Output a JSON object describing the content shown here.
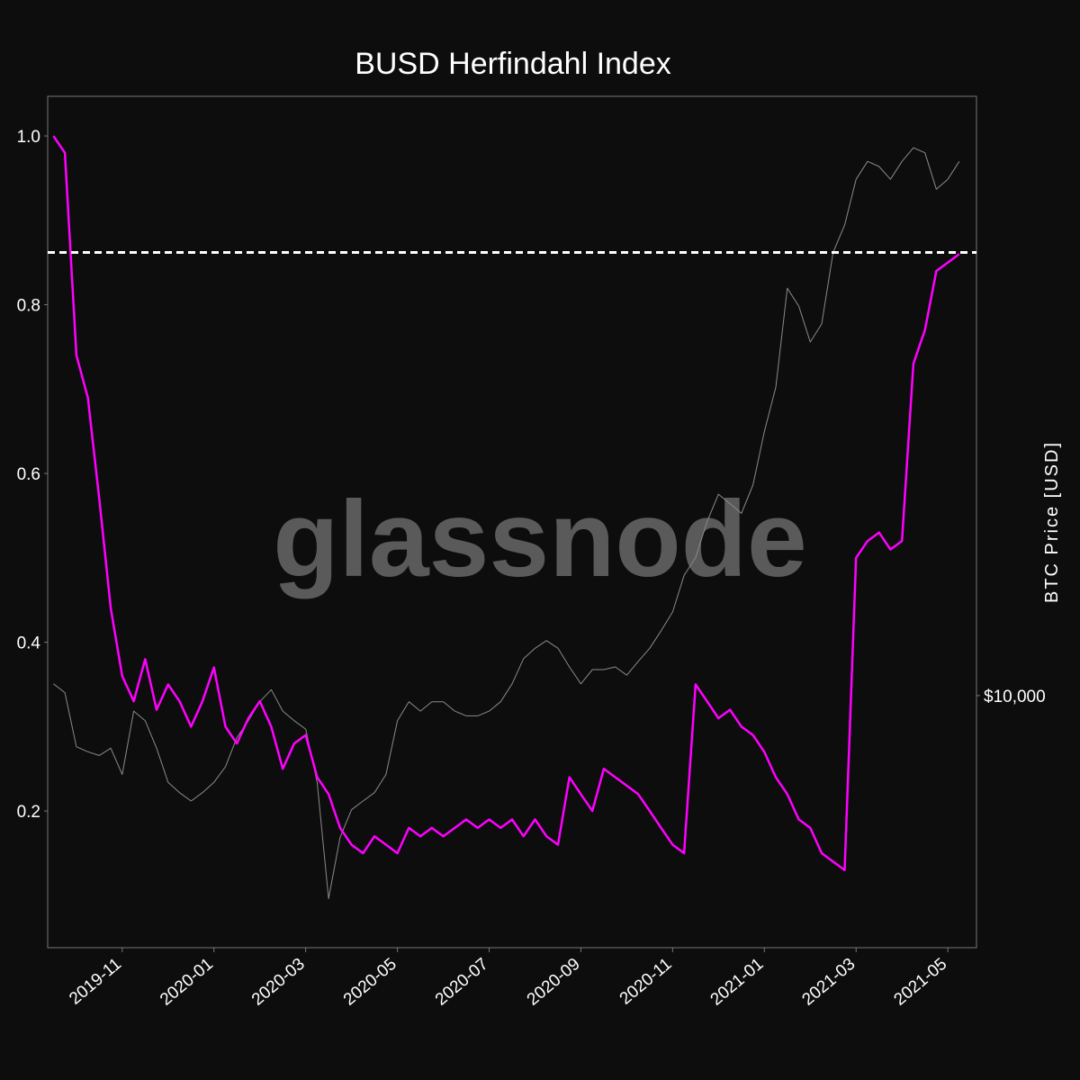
{
  "chart_data": {
    "type": "line",
    "title": "BUSD Herfindahl Index",
    "watermark": "glassnode",
    "y2label": "BTC Price [USD]",
    "categories": [
      null,
      null,
      null,
      null,
      null,
      null,
      "2019-11",
      null,
      null,
      null,
      null,
      null,
      null,
      null,
      "2020-01",
      null,
      null,
      null,
      null,
      null,
      null,
      null,
      "2020-03",
      null,
      null,
      null,
      null,
      null,
      null,
      null,
      "2020-05",
      null,
      null,
      null,
      null,
      null,
      null,
      null,
      "2020-07",
      null,
      null,
      null,
      null,
      null,
      null,
      null,
      "2020-09",
      null,
      null,
      null,
      null,
      null,
      null,
      null,
      "2020-11",
      null,
      null,
      null,
      null,
      null,
      null,
      null,
      "2021-01",
      null,
      null,
      null,
      null,
      null,
      null,
      null,
      "2021-03",
      null,
      null,
      null,
      null,
      null,
      null,
      null,
      "2021-05",
      null
    ],
    "series": [
      {
        "name": "BUSD Herfindahl Index",
        "color": "#ff00ff",
        "axis": "y",
        "values": [
          1.0,
          0.98,
          0.74,
          0.69,
          0.57,
          0.44,
          0.36,
          0.33,
          0.38,
          0.32,
          0.35,
          0.33,
          0.3,
          0.33,
          0.37,
          0.3,
          0.28,
          0.31,
          0.33,
          0.3,
          0.25,
          0.28,
          0.29,
          0.24,
          0.22,
          0.18,
          0.16,
          0.15,
          0.17,
          0.16,
          0.15,
          0.18,
          0.17,
          0.18,
          0.17,
          0.18,
          0.19,
          0.18,
          0.19,
          0.18,
          0.19,
          0.17,
          0.19,
          0.17,
          0.16,
          0.24,
          0.22,
          0.2,
          0.25,
          0.24,
          0.23,
          0.22,
          0.2,
          0.18,
          0.16,
          0.15,
          0.35,
          0.33,
          0.31,
          0.32,
          0.3,
          0.29,
          0.27,
          0.24,
          0.22,
          0.19,
          0.18,
          0.15,
          0.14,
          0.13,
          0.5,
          0.52,
          0.53,
          0.51,
          0.52,
          0.73,
          0.77,
          0.84,
          0.85,
          0.86
        ]
      },
      {
        "name": "BTC Price [USD]",
        "color": "#8a8a8a",
        "axis": "y2",
        "values": [
          10400,
          10100,
          8440,
          8300,
          8200,
          8400,
          7700,
          9500,
          9200,
          8400,
          7500,
          7250,
          7050,
          7250,
          7500,
          7900,
          8700,
          9200,
          9800,
          10200,
          9500,
          9200,
          8950,
          7500,
          5100,
          6250,
          6850,
          7050,
          7250,
          7700,
          9200,
          9800,
          9500,
          9800,
          9800,
          9500,
          9350,
          9350,
          9500,
          9800,
          10400,
          11300,
          11700,
          12000,
          11700,
          11000,
          10400,
          10900,
          10900,
          11000,
          10700,
          11200,
          11700,
          12400,
          13200,
          14900,
          15800,
          17800,
          19500,
          18900,
          18300,
          20100,
          24000,
          27800,
          38600,
          36400,
          32300,
          34300,
          43500,
          47600,
          55400,
          58800,
          57800,
          55400,
          58800,
          61500,
          60500,
          53600,
          55400,
          58800
        ]
      }
    ],
    "ylim": [
      0.038,
      1.047
    ],
    "yticks": [
      0.2,
      0.4,
      0.6,
      0.8,
      {
        "value": 1,
        "label": "1.0"
      }
    ],
    "y2lim": [
      4335,
      72950
    ],
    "y2scale": "log",
    "y2ticks": [
      {
        "value": 10000,
        "label": "$10,000"
      }
    ],
    "reference_line": {
      "value": 0.862,
      "color": "#ffffff"
    }
  }
}
